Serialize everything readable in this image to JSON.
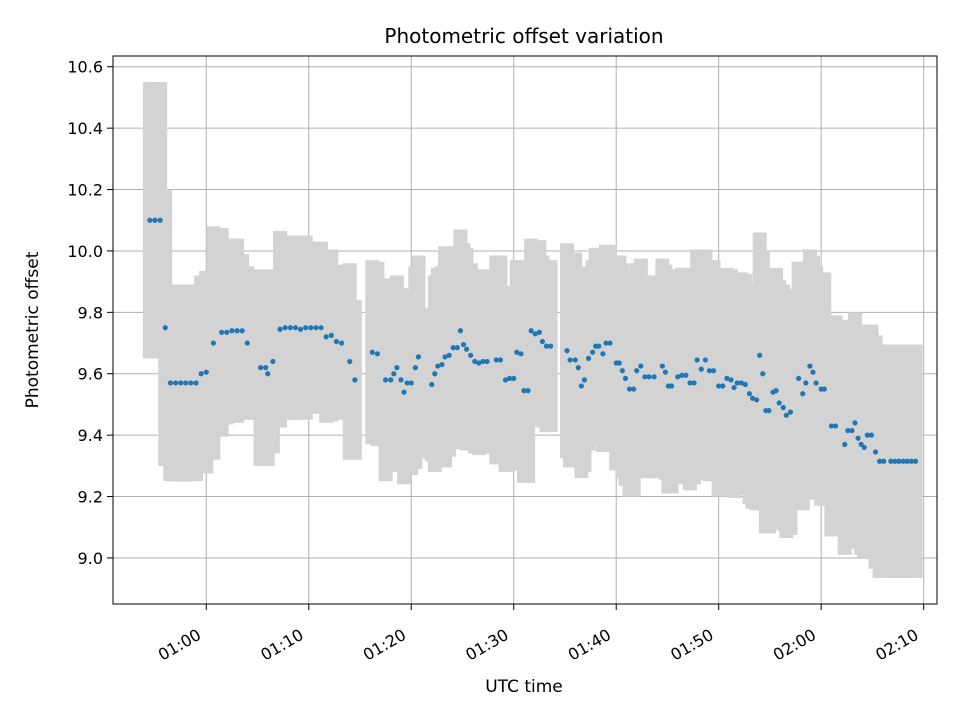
{
  "chart_data": {
    "type": "scatter",
    "title": "Photometric offset variation",
    "xlabel": "UTC time",
    "ylabel": "Photometric offset",
    "x_tick_labels": [
      "01:00",
      "01:10",
      "01:20",
      "01:30",
      "01:40",
      "01:50",
      "02:00",
      "02:10"
    ],
    "x_tick_minutes": [
      60,
      70,
      80,
      90,
      100,
      110,
      120,
      130
    ],
    "y_ticks": [
      9.0,
      9.2,
      9.4,
      9.6,
      9.8,
      10.0,
      10.2,
      10.4,
      10.6
    ],
    "xlim_minutes": [
      50.9,
      131.3
    ],
    "ylim": [
      8.85,
      10.635
    ],
    "grid": true,
    "x_unit": "minutes after 00:00 UTC",
    "point_color": "#1f77b4",
    "errorbar_color": "#d3d3d3",
    "series": [
      {
        "points": [
          [
            54.5,
            10.1,
            0.45
          ],
          [
            55.0,
            10.1,
            0.45
          ],
          [
            55.5,
            10.1,
            0.45
          ],
          [
            56.0,
            9.75,
            0.45
          ],
          [
            56.5,
            9.57,
            0.32
          ],
          [
            57.0,
            9.57,
            0.32
          ],
          [
            57.5,
            9.57,
            0.32
          ],
          [
            58.0,
            9.57,
            0.32
          ],
          [
            58.5,
            9.57,
            0.32
          ],
          [
            59.0,
            9.57,
            0.32
          ],
          [
            59.5,
            9.6,
            0.32
          ],
          [
            60.0,
            9.605,
            0.33
          ],
          [
            60.7,
            9.7,
            0.38
          ],
          [
            61.5,
            9.735,
            0.34
          ],
          [
            62.0,
            9.735,
            0.3
          ],
          [
            62.5,
            9.74,
            0.3
          ],
          [
            63.0,
            9.74,
            0.3
          ],
          [
            63.5,
            9.74,
            0.25
          ],
          [
            64.0,
            9.7,
            0.25
          ],
          [
            65.3,
            9.62,
            0.32
          ],
          [
            65.8,
            9.62,
            0.3
          ],
          [
            66.0,
            9.6,
            0.3
          ],
          [
            66.5,
            9.64,
            0.3
          ],
          [
            67.2,
            9.745,
            0.32
          ],
          [
            67.7,
            9.75,
            0.3
          ],
          [
            68.2,
            9.75,
            0.3
          ],
          [
            68.7,
            9.75,
            0.3
          ],
          [
            69.2,
            9.745,
            0.28
          ],
          [
            69.7,
            9.75,
            0.3
          ],
          [
            70.2,
            9.75,
            0.28
          ],
          [
            70.7,
            9.75,
            0.28
          ],
          [
            71.2,
            9.75,
            0.28
          ],
          [
            71.7,
            9.72,
            0.28
          ],
          [
            72.2,
            9.725,
            0.28
          ],
          [
            72.7,
            9.705,
            0.25
          ],
          [
            73.2,
            9.7,
            0.25
          ],
          [
            74.0,
            9.64,
            0.32
          ],
          [
            74.5,
            9.58,
            0.26
          ],
          [
            76.2,
            9.67,
            0.3
          ],
          [
            76.7,
            9.665,
            0.3
          ],
          [
            77.5,
            9.58,
            0.33
          ],
          [
            78.0,
            9.58,
            0.3
          ],
          [
            78.3,
            9.6,
            0.3
          ],
          [
            78.6,
            9.62,
            0.3
          ],
          [
            79.0,
            9.58,
            0.3
          ],
          [
            79.3,
            9.54,
            0.3
          ],
          [
            79.6,
            9.57,
            0.3
          ],
          [
            80.0,
            9.57,
            0.3
          ],
          [
            80.4,
            9.62,
            0.33
          ],
          [
            80.7,
            9.655,
            0.33
          ],
          [
            82.0,
            9.565,
            0.25
          ],
          [
            82.3,
            9.6,
            0.32
          ],
          [
            82.6,
            9.625,
            0.32
          ],
          [
            83.0,
            9.63,
            0.32
          ],
          [
            83.3,
            9.655,
            0.36
          ],
          [
            83.7,
            9.66,
            0.33
          ],
          [
            84.1,
            9.685,
            0.33
          ],
          [
            84.5,
            9.685,
            0.33
          ],
          [
            84.8,
            9.74,
            0.33
          ],
          [
            85.1,
            9.695,
            0.33
          ],
          [
            85.4,
            9.68,
            0.33
          ],
          [
            85.8,
            9.66,
            0.3
          ],
          [
            86.2,
            9.64,
            0.3
          ],
          [
            86.6,
            9.635,
            0.3
          ],
          [
            87.0,
            9.64,
            0.3
          ],
          [
            87.4,
            9.64,
            0.3
          ],
          [
            88.3,
            9.645,
            0.34
          ],
          [
            88.7,
            9.645,
            0.34
          ],
          [
            89.2,
            9.58,
            0.3
          ],
          [
            89.6,
            9.585,
            0.3
          ],
          [
            90.0,
            9.585,
            0.3
          ],
          [
            90.3,
            9.67,
            0.3
          ],
          [
            90.7,
            9.665,
            0.3
          ],
          [
            91.0,
            9.545,
            0.3
          ],
          [
            91.4,
            9.545,
            0.3
          ],
          [
            91.7,
            9.74,
            0.3
          ],
          [
            92.1,
            9.73,
            0.3
          ],
          [
            92.5,
            9.735,
            0.3
          ],
          [
            92.8,
            9.705,
            0.28
          ],
          [
            93.2,
            9.69,
            0.28
          ],
          [
            93.6,
            9.69,
            0.28
          ],
          [
            95.2,
            9.675,
            0.35
          ],
          [
            95.5,
            9.645,
            0.35
          ],
          [
            96.0,
            9.645,
            0.35
          ],
          [
            96.3,
            9.62,
            0.3
          ],
          [
            96.6,
            9.56,
            0.3
          ],
          [
            96.9,
            9.58,
            0.3
          ],
          [
            97.3,
            9.65,
            0.3
          ],
          [
            97.7,
            9.67,
            0.3
          ],
          [
            98.0,
            9.69,
            0.32
          ],
          [
            98.3,
            9.69,
            0.32
          ],
          [
            98.7,
            9.665,
            0.32
          ],
          [
            99.0,
            9.7,
            0.32
          ],
          [
            99.4,
            9.7,
            0.32
          ],
          [
            100.0,
            9.635,
            0.35
          ],
          [
            100.3,
            9.635,
            0.35
          ],
          [
            100.6,
            9.61,
            0.35
          ],
          [
            100.9,
            9.585,
            0.35
          ],
          [
            101.3,
            9.55,
            0.35
          ],
          [
            101.7,
            9.55,
            0.35
          ],
          [
            102.0,
            9.61,
            0.35
          ],
          [
            102.4,
            9.625,
            0.35
          ],
          [
            102.8,
            9.59,
            0.33
          ],
          [
            103.2,
            9.59,
            0.33
          ],
          [
            103.7,
            9.59,
            0.33
          ],
          [
            104.5,
            9.625,
            0.35
          ],
          [
            104.8,
            9.605,
            0.35
          ],
          [
            105.1,
            9.56,
            0.35
          ],
          [
            105.4,
            9.56,
            0.35
          ],
          [
            106.0,
            9.59,
            0.35
          ],
          [
            106.4,
            9.595,
            0.35
          ],
          [
            106.8,
            9.595,
            0.35
          ],
          [
            107.2,
            9.57,
            0.35
          ],
          [
            107.6,
            9.57,
            0.33
          ],
          [
            107.9,
            9.645,
            0.36
          ],
          [
            108.3,
            9.615,
            0.36
          ],
          [
            108.7,
            9.645,
            0.36
          ],
          [
            109.1,
            9.61,
            0.36
          ],
          [
            109.5,
            9.61,
            0.36
          ],
          [
            110.0,
            9.56,
            0.36
          ],
          [
            110.4,
            9.56,
            0.36
          ],
          [
            110.8,
            9.585,
            0.36
          ],
          [
            111.2,
            9.58,
            0.36
          ],
          [
            111.5,
            9.555,
            0.36
          ],
          [
            111.8,
            9.57,
            0.36
          ],
          [
            112.2,
            9.57,
            0.36
          ],
          [
            112.6,
            9.565,
            0.36
          ],
          [
            113.0,
            9.535,
            0.36
          ],
          [
            113.3,
            9.52,
            0.36
          ],
          [
            113.7,
            9.515,
            0.36
          ],
          [
            114.0,
            9.66,
            0.4
          ],
          [
            114.3,
            9.6,
            0.4
          ],
          [
            114.6,
            9.48,
            0.4
          ],
          [
            114.9,
            9.48,
            0.4
          ],
          [
            115.3,
            9.54,
            0.4
          ],
          [
            115.6,
            9.545,
            0.4
          ],
          [
            115.9,
            9.505,
            0.4
          ],
          [
            116.3,
            9.49,
            0.4
          ],
          [
            116.6,
            9.465,
            0.4
          ],
          [
            117.0,
            9.475,
            0.4
          ],
          [
            117.8,
            9.585,
            0.38
          ],
          [
            118.2,
            9.535,
            0.38
          ],
          [
            118.5,
            9.57,
            0.38
          ],
          [
            118.9,
            9.625,
            0.38
          ],
          [
            119.2,
            9.605,
            0.38
          ],
          [
            119.5,
            9.57,
            0.38
          ],
          [
            120.0,
            9.55,
            0.38
          ],
          [
            120.3,
            9.55,
            0.38
          ],
          [
            121.0,
            9.43,
            0.36
          ],
          [
            121.4,
            9.43,
            0.36
          ],
          [
            122.3,
            9.37,
            0.36
          ],
          [
            122.6,
            9.415,
            0.36
          ],
          [
            123.0,
            9.415,
            0.36
          ],
          [
            123.3,
            9.44,
            0.36
          ],
          [
            123.6,
            9.39,
            0.36
          ],
          [
            123.9,
            9.37,
            0.36
          ],
          [
            124.2,
            9.36,
            0.36
          ],
          [
            124.5,
            9.4,
            0.36
          ],
          [
            124.9,
            9.4,
            0.36
          ],
          [
            125.3,
            9.345,
            0.38
          ],
          [
            125.7,
            9.315,
            0.38
          ],
          [
            126.1,
            9.315,
            0.38
          ],
          [
            126.8,
            9.315,
            0.38
          ],
          [
            127.2,
            9.315,
            0.38
          ],
          [
            127.6,
            9.315,
            0.38
          ],
          [
            128.0,
            9.315,
            0.38
          ],
          [
            128.4,
            9.315,
            0.38
          ],
          [
            128.8,
            9.315,
            0.38
          ],
          [
            129.2,
            9.315,
            0.38
          ]
        ]
      }
    ]
  }
}
